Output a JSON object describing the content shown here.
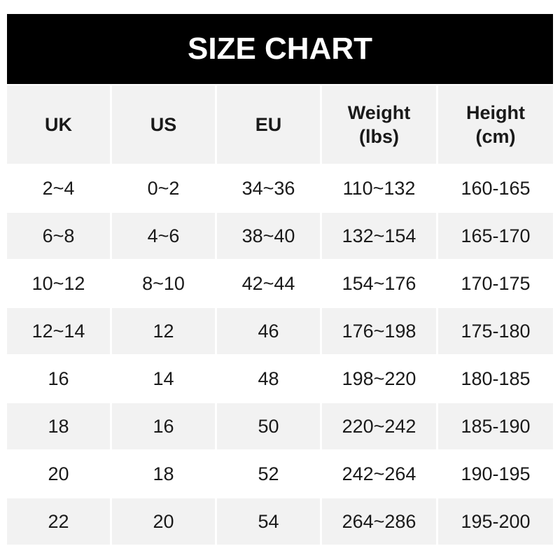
{
  "title": "SIZE CHART",
  "headers": [
    "UK",
    "US",
    "EU",
    "Weight\n(lbs)",
    "Height\n(cm)"
  ],
  "rows": [
    [
      "2~4",
      "0~2",
      "34~36",
      "110~132",
      "160-165"
    ],
    [
      "6~8",
      "4~6",
      "38~40",
      "132~154",
      "165-170"
    ],
    [
      "10~12",
      "8~10",
      "42~44",
      "154~176",
      "170-175"
    ],
    [
      "12~14",
      "12",
      "46",
      "176~198",
      "175-180"
    ],
    [
      "16",
      "14",
      "48",
      "198~220",
      "180-185"
    ],
    [
      "18",
      "16",
      "50",
      "220~242",
      "185-190"
    ],
    [
      "20",
      "18",
      "52",
      "242~264",
      "190-195"
    ],
    [
      "22",
      "20",
      "54",
      "264~286",
      "195-200"
    ]
  ]
}
